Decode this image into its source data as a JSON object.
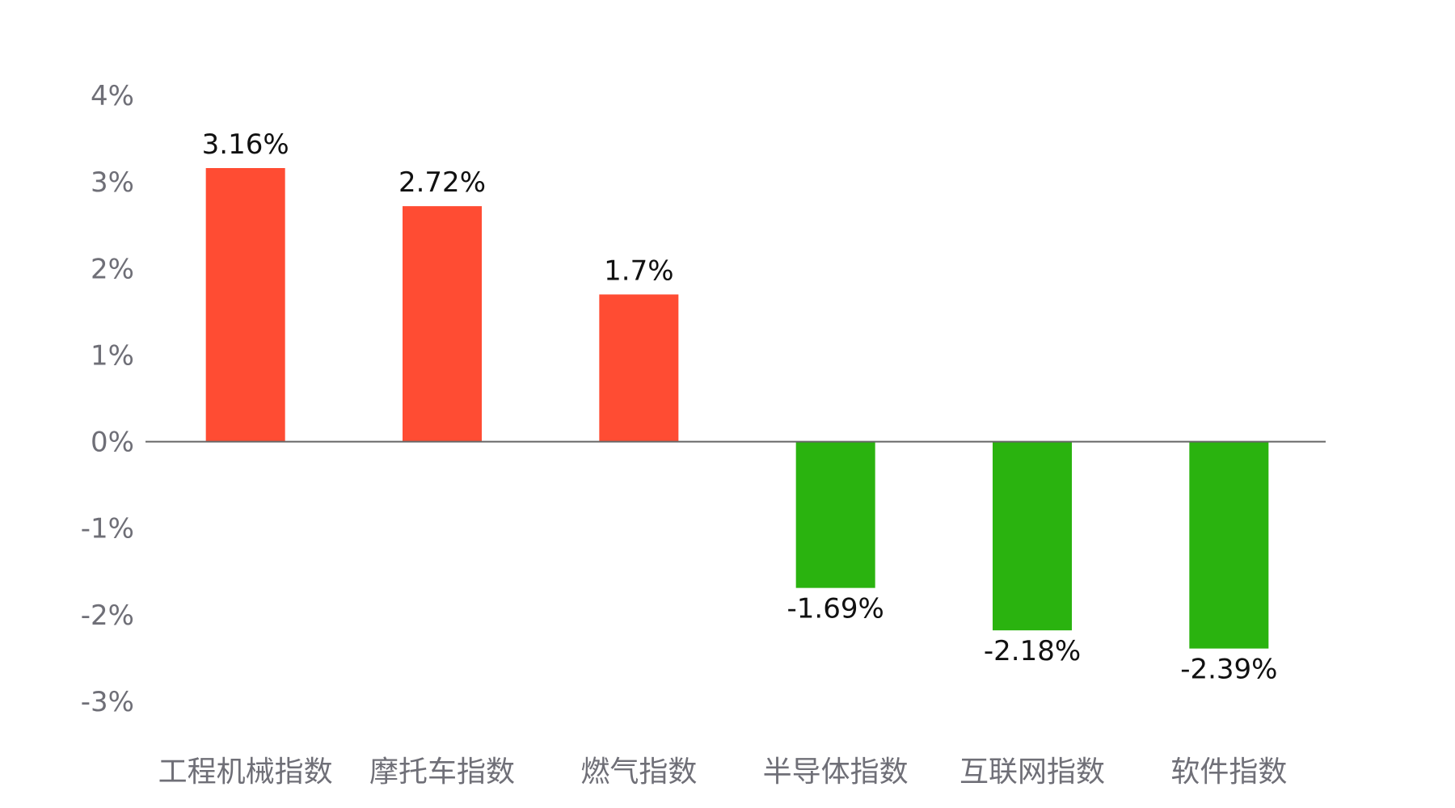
{
  "chart_data": {
    "type": "bar",
    "categories": [
      "工程机械指数",
      "摩托车指数",
      "燃气指数",
      "半导体指数",
      "互联网指数",
      "软件指数"
    ],
    "values": [
      3.16,
      2.72,
      1.7,
      -1.69,
      -2.18,
      -2.39
    ],
    "value_labels": [
      "3.16%",
      "2.72%",
      "1.7%",
      "-1.69%",
      "-2.18%",
      "-2.39%"
    ],
    "y_ticks": [
      4,
      3,
      2,
      1,
      0,
      -1,
      -2,
      -3
    ],
    "y_tick_labels": [
      "4%",
      "3%",
      "2%",
      "1%",
      "0%",
      "-1%",
      "-2%",
      "-3%"
    ],
    "ylim": [
      -3,
      4
    ],
    "title": "",
    "xlabel": "",
    "ylabel": "",
    "grid": false,
    "colors": {
      "positive": "#ff4c33",
      "negative": "#2ab30f",
      "axis": "#666666",
      "tick_text": "#6f6f77",
      "label_text": "#111111"
    }
  }
}
